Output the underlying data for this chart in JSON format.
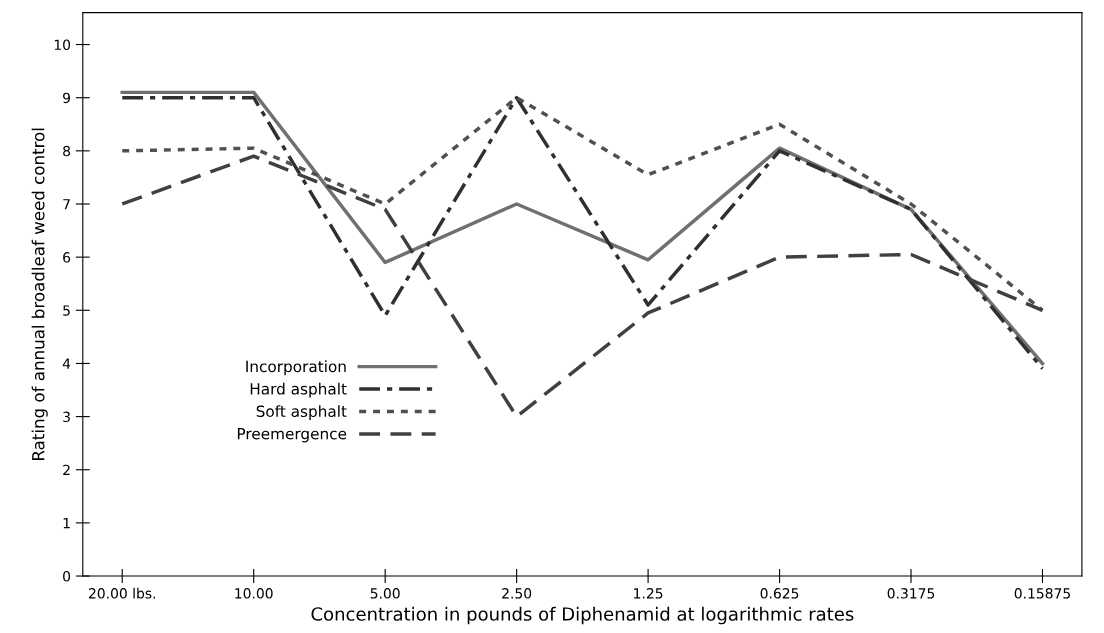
{
  "chart_data": {
    "type": "line",
    "xlabel": "Concentration in pounds of Diphenamid at logarithmic rates",
    "ylabel": "Rating of annual broadleaf weed control",
    "categories": [
      "20.00 lbs.",
      "10.00",
      "5.00",
      "2.50",
      "1.25",
      "0.625",
      "0.3175",
      "0.15875"
    ],
    "ylim": [
      0,
      10.6
    ],
    "yticks": [
      0,
      1,
      2,
      3,
      4,
      5,
      6,
      7,
      8,
      9,
      10
    ],
    "grid": false,
    "legend": "center left",
    "marker": "none",
    "series": [
      {
        "name": "Incorporation",
        "color": "#707070",
        "line_style": "solid",
        "values": [
          9.1,
          9.1,
          5.9,
          7.0,
          5.95,
          8.05,
          6.9,
          4.0
        ]
      },
      {
        "name": "Hard asphalt",
        "color": "#303030",
        "line_style": "dashdot",
        "values": [
          9.0,
          9.0,
          4.9,
          9.0,
          5.1,
          8.0,
          6.9,
          3.9
        ]
      },
      {
        "name": "Soft asphalt",
        "color": "#505050",
        "line_style": "dotted",
        "values": [
          8.0,
          8.05,
          7.0,
          9.0,
          7.55,
          8.5,
          7.0,
          5.0
        ]
      },
      {
        "name": "Preemergence",
        "color": "#404040",
        "line_style": "dashed",
        "values": [
          7.0,
          7.9,
          6.9,
          3.0,
          4.95,
          6.0,
          6.05,
          5.0
        ]
      }
    ]
  }
}
